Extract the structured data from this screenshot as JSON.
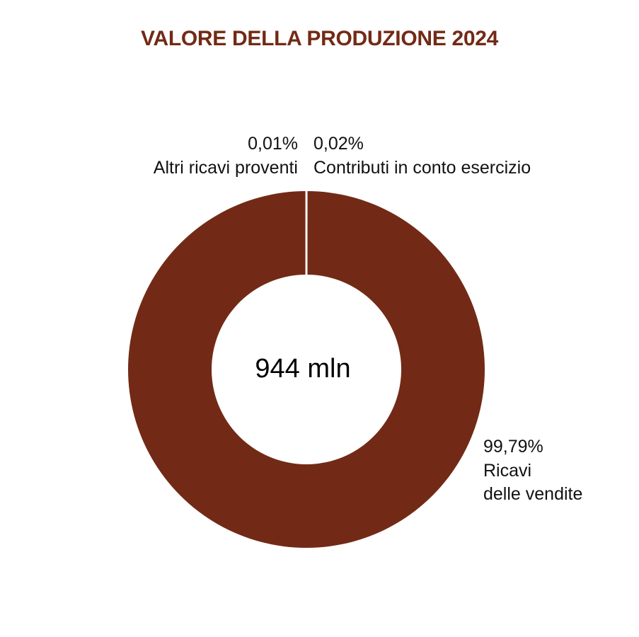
{
  "chart_data": {
    "type": "pie",
    "style": "donut",
    "title": "VALORE DELLA PRODUZIONE 2024",
    "center_label": "944 mln",
    "slices": [
      {
        "name": "Ricavi delle vendite",
        "name_lines": [
          "Ricavi",
          "delle vendite"
        ],
        "value": 99.79,
        "value_label": "99,79%"
      },
      {
        "name": "Altri ricavi proventi",
        "name_lines": [
          "Altri ricavi proventi"
        ],
        "value": 0.01,
        "value_label": "0,01%"
      },
      {
        "name": "Contributi in conto esercizio",
        "name_lines": [
          "Contributi in conto esercizio"
        ],
        "value": 0.02,
        "value_label": "0,02%"
      }
    ],
    "colors": {
      "slice": "#722a16",
      "separator": "#ffffff",
      "title": "#722a16"
    }
  }
}
